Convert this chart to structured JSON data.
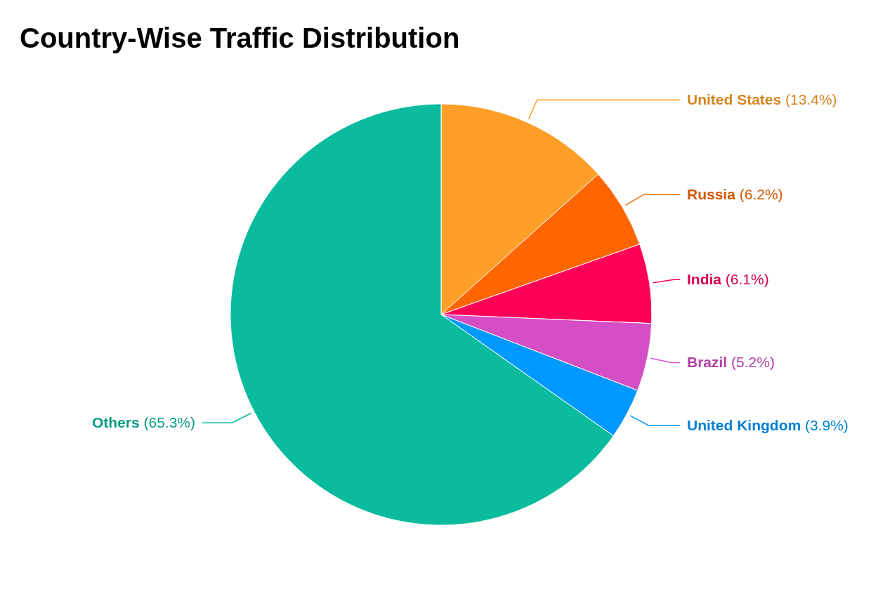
{
  "chart_data": {
    "type": "pie",
    "title": "Country-Wise Traffic Distribution",
    "categories": [
      "United States",
      "Russia",
      "India",
      "Brazil",
      "United Kingdom",
      "Others"
    ],
    "values": [
      13.4,
      6.2,
      6.1,
      5.2,
      3.9,
      65.3
    ],
    "value_labels": [
      "(13.4%)",
      "(6.2%)",
      "(6.1%)",
      "(5.2%)",
      "(3.9%)",
      "(65.3%)"
    ],
    "colors": [
      "#ff9f27",
      "#ff6600",
      "#ff0059",
      "#d64ec5",
      "#0099ff",
      "#0abb9e"
    ]
  }
}
